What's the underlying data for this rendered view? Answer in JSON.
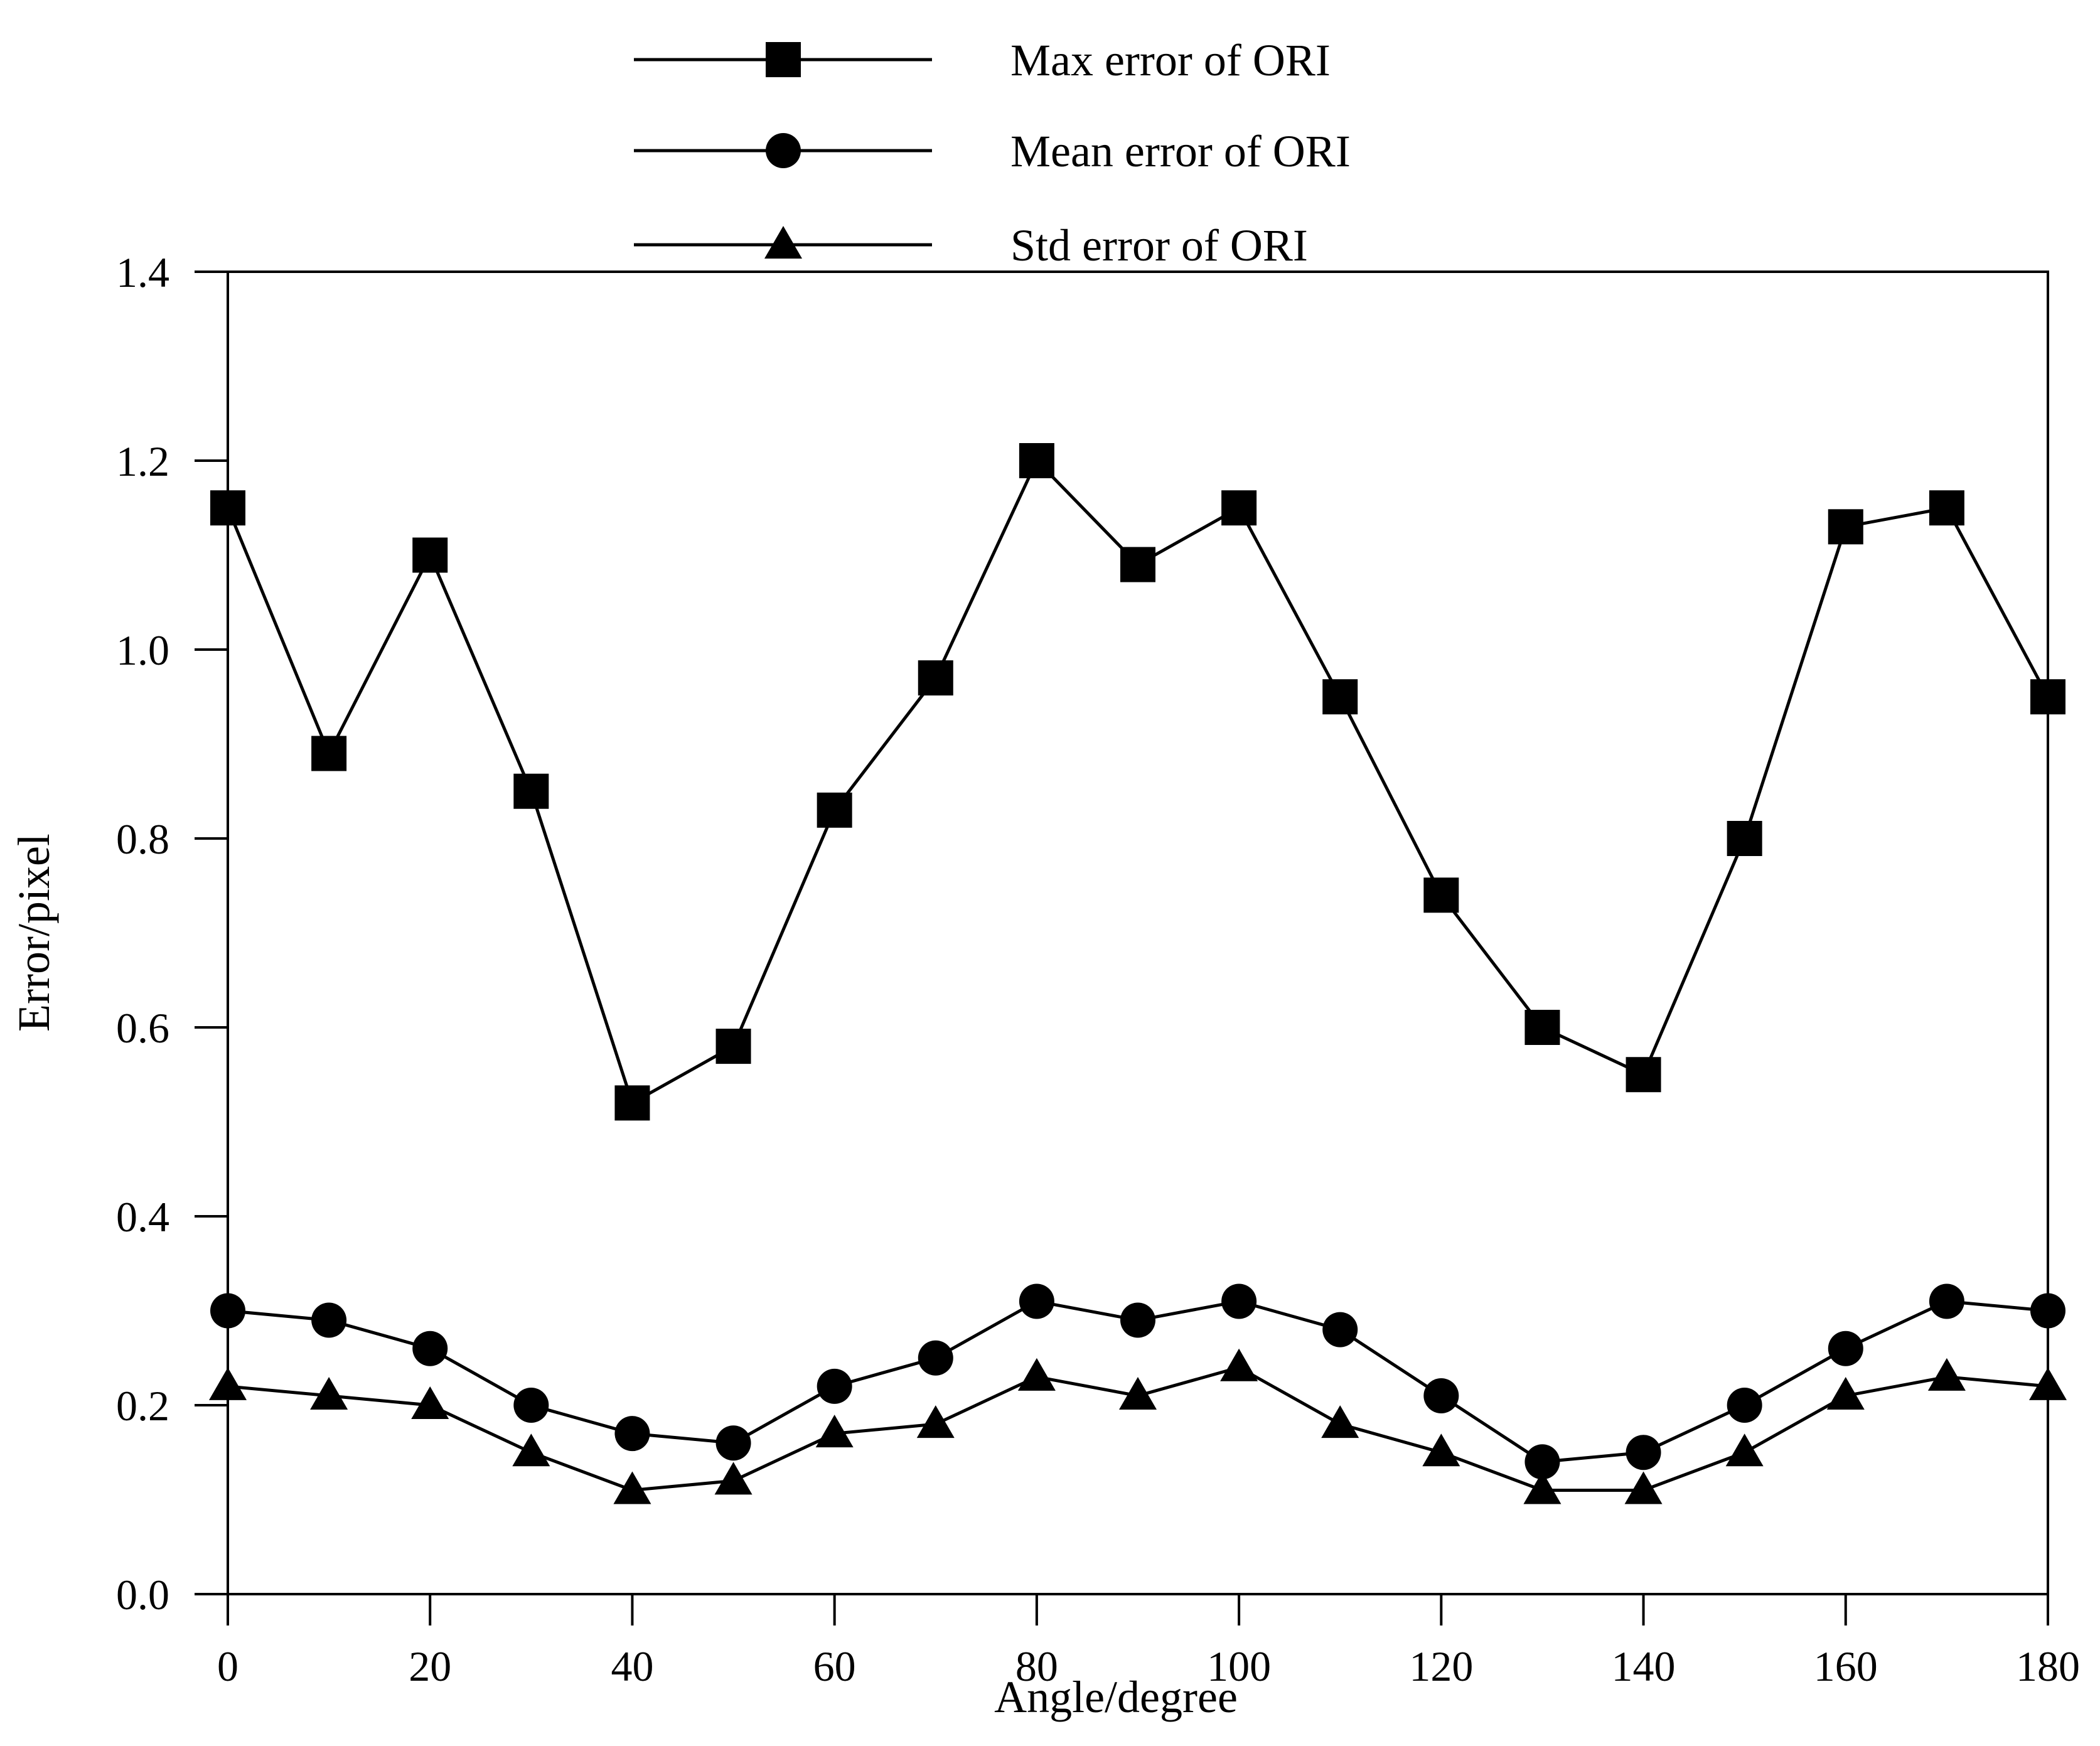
{
  "chart_data": {
    "type": "line",
    "title": "",
    "xlabel": "Angle/degree",
    "ylabel": "Error/pixel",
    "xlim": [
      0,
      180
    ],
    "ylim": [
      0.0,
      1.4
    ],
    "grid": false,
    "x_ticks": [
      0,
      20,
      40,
      60,
      80,
      100,
      120,
      140,
      160,
      180
    ],
    "x_tick_labels": [
      "0",
      "20",
      "40",
      "60",
      "80",
      "100",
      "120",
      "140",
      "160",
      "180"
    ],
    "y_ticks": [
      0.0,
      0.2,
      0.4,
      0.6,
      0.8,
      1.0,
      1.2,
      1.4
    ],
    "y_tick_labels": [
      "0.0",
      "0.2",
      "0.4",
      "0.6",
      "0.8",
      "1.0",
      "1.2",
      "1.4"
    ],
    "legend_position": "top-center",
    "x": [
      0,
      10,
      20,
      30,
      40,
      50,
      60,
      70,
      80,
      90,
      100,
      110,
      120,
      130,
      140,
      150,
      160,
      170,
      180
    ],
    "series": [
      {
        "name": "Max error of ORI",
        "marker": "square",
        "values": [
          1.15,
          0.89,
          1.1,
          0.85,
          0.52,
          0.58,
          0.83,
          0.97,
          1.2,
          1.09,
          1.15,
          0.95,
          0.74,
          0.6,
          0.55,
          0.8,
          1.13,
          1.15,
          0.95
        ]
      },
      {
        "name": "Mean error of ORI",
        "marker": "circle",
        "values": [
          0.3,
          0.29,
          0.26,
          0.2,
          0.17,
          0.16,
          0.22,
          0.25,
          0.31,
          0.29,
          0.31,
          0.28,
          0.21,
          0.14,
          0.15,
          0.2,
          0.26,
          0.31,
          0.3
        ]
      },
      {
        "name": "Std error of ORI",
        "marker": "triangle",
        "values": [
          0.22,
          0.21,
          0.2,
          0.15,
          0.11,
          0.12,
          0.17,
          0.18,
          0.23,
          0.21,
          0.24,
          0.18,
          0.15,
          0.11,
          0.11,
          0.15,
          0.21,
          0.23,
          0.22
        ]
      }
    ]
  }
}
